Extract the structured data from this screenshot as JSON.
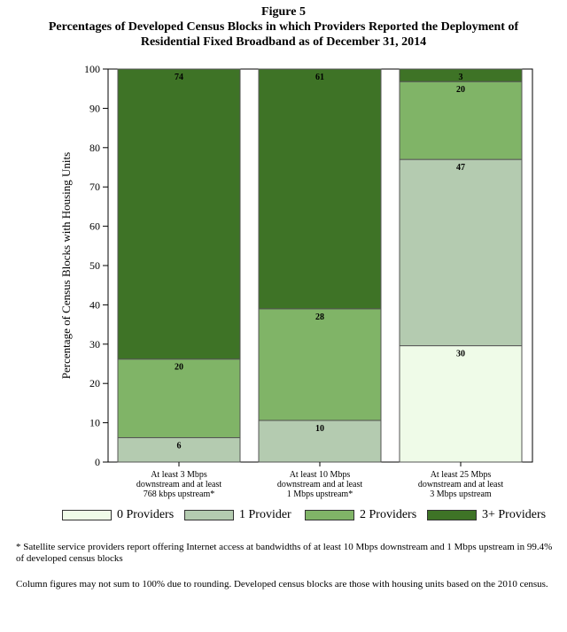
{
  "figure_label": "Figure 5",
  "title": "Percentages of Developed Census Blocks in which Providers Reported the Deployment of Residential Fixed Broadband as of December 31, 2014",
  "chart_data": {
    "type": "bar",
    "stacked": true,
    "title": "Percentages of Developed Census Blocks in which Providers Reported the Deployment of Residential Fixed Broadband as of December 31, 2014",
    "xlabel": "",
    "ylabel": "Percentage of Census Blocks with Housing Units",
    "ylim": [
      0,
      100
    ],
    "yticks": [
      0,
      10,
      20,
      30,
      40,
      50,
      60,
      70,
      80,
      90,
      100
    ],
    "grid": false,
    "legend_position": "bottom",
    "categories": [
      [
        "At least 3 Mbps",
        "downstream and at least",
        "768 kbps upstream*"
      ],
      [
        "At least 10 Mbps",
        "downstream and at least",
        "1 Mbps upstream*"
      ],
      [
        "At least 25 Mbps",
        "downstream and at least",
        "3 Mbps upstream"
      ]
    ],
    "series": [
      {
        "name": "0 Providers",
        "color": "#effbe8",
        "values": [
          0,
          0,
          30
        ]
      },
      {
        "name": "1 Provider",
        "color": "#b4cbb0",
        "values": [
          6,
          10,
          47
        ]
      },
      {
        "name": "2 Providers",
        "color": "#80b467",
        "values": [
          20,
          28,
          20
        ]
      },
      {
        "name": "3+ Providers",
        "color": "#3e7326",
        "values": [
          74,
          61,
          3
        ]
      }
    ],
    "data_labels": [
      [
        "",
        "6",
        "20",
        "74"
      ],
      [
        "",
        "10",
        "28",
        "61"
      ],
      [
        "30",
        "47",
        "20",
        "3"
      ]
    ],
    "plot_end_values": [
      [
        0,
        6.2,
        26.2,
        100
      ],
      [
        0,
        10.6,
        39.0,
        100
      ],
      [
        29.6,
        77.0,
        96.8,
        100
      ]
    ]
  },
  "notes": {
    "footnote": "* Satellite service providers report offering Internet access at bandwidths of at least 10 Mbps downstream and 1 Mbps upstream in 99.4% of developed census blocks",
    "rounding": "Column figures may not sum to 100% due to rounding. Developed census blocks are those with housing units based on the 2010 census."
  }
}
